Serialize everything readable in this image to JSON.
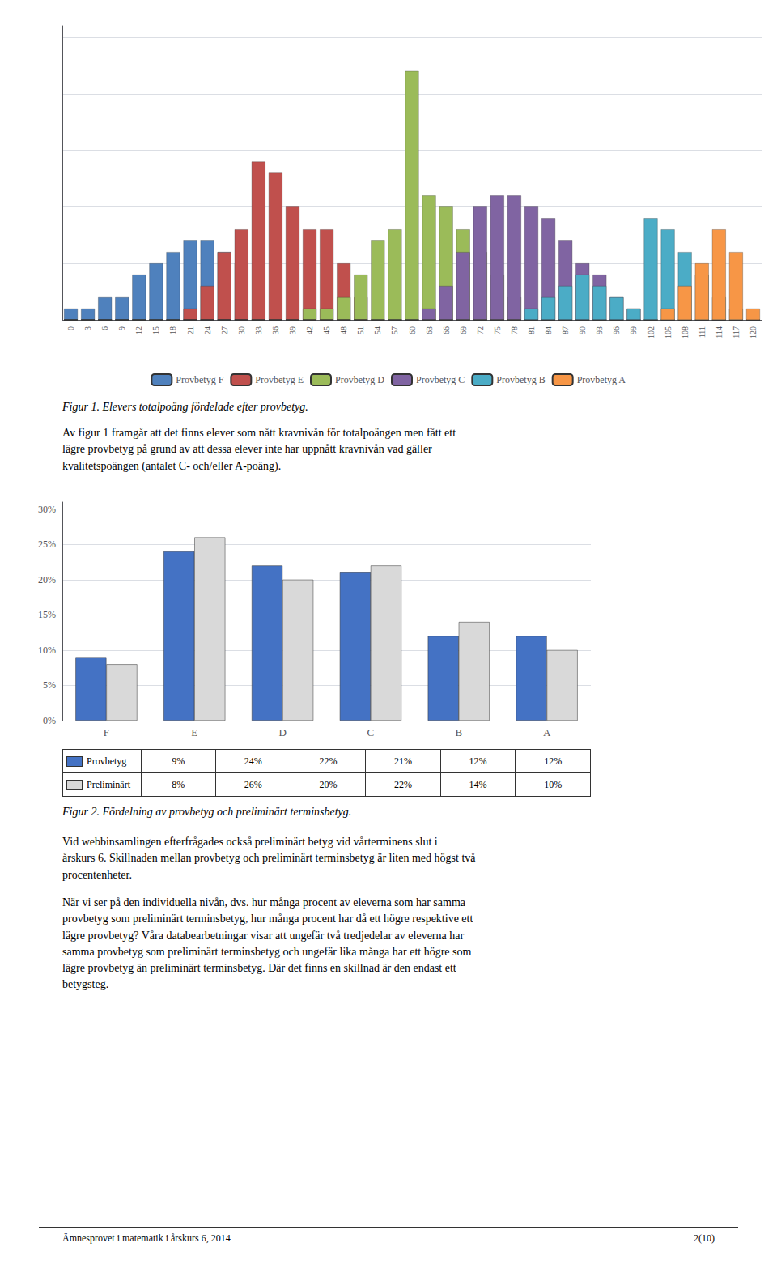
{
  "chart_data": [
    {
      "type": "bar",
      "title": "Figur 1. Elevers totalpoäng fördelade efter provbetyg.",
      "categories": [
        0,
        3,
        6,
        9,
        12,
        15,
        18,
        21,
        24,
        27,
        30,
        33,
        36,
        39,
        42,
        45,
        48,
        51,
        54,
        57,
        60,
        63,
        66,
        69,
        72,
        75,
        78,
        81,
        84,
        87,
        90,
        93,
        96,
        99,
        102,
        105,
        108,
        111,
        114,
        117,
        120
      ],
      "series": [
        {
          "name": "Provbetyg F",
          "color": "#4F81BD",
          "values": [
            1,
            1,
            2,
            2,
            4,
            5,
            6,
            7,
            7,
            6,
            5,
            0,
            0,
            0,
            0,
            0,
            0,
            0,
            0,
            0,
            0,
            0,
            0,
            0,
            0,
            0,
            0,
            0,
            0,
            0,
            0,
            0,
            0,
            0,
            0,
            0,
            0,
            0,
            0,
            0,
            0
          ]
        },
        {
          "name": "Provbetyg E",
          "color": "#C0504D",
          "values": [
            0,
            0,
            0,
            0,
            0,
            0,
            0,
            1,
            3,
            6,
            8,
            14,
            13,
            10,
            8,
            8,
            5,
            2,
            0,
            0,
            0,
            0,
            0,
            0,
            0,
            0,
            0,
            0,
            0,
            0,
            0,
            0,
            0,
            0,
            0,
            0,
            0,
            0,
            0,
            0,
            0
          ]
        },
        {
          "name": "Provbetyg D",
          "color": "#9BBB59",
          "values": [
            0,
            0,
            0,
            0,
            0,
            0,
            0,
            0,
            0,
            0,
            0,
            0,
            0,
            0,
            1,
            1,
            2,
            4,
            7,
            8,
            22,
            11,
            10,
            8,
            6,
            4,
            2,
            0,
            0,
            0,
            0,
            0,
            0,
            0,
            0,
            0,
            0,
            0,
            0,
            0,
            0
          ]
        },
        {
          "name": "Provbetyg C",
          "color": "#8064A2",
          "values": [
            0,
            0,
            0,
            0,
            0,
            0,
            0,
            0,
            0,
            0,
            0,
            0,
            0,
            0,
            0,
            0,
            0,
            0,
            0,
            0,
            0,
            1,
            3,
            6,
            10,
            11,
            11,
            10,
            9,
            7,
            5,
            4,
            2,
            1,
            0,
            0,
            0,
            0,
            0,
            0,
            0
          ]
        },
        {
          "name": "Provbetyg B",
          "color": "#4BACC6",
          "values": [
            0,
            0,
            0,
            0,
            0,
            0,
            0,
            0,
            0,
            0,
            0,
            0,
            0,
            0,
            0,
            0,
            0,
            0,
            0,
            0,
            0,
            0,
            0,
            0,
            0,
            0,
            0,
            1,
            2,
            3,
            4,
            3,
            2,
            1,
            9,
            8,
            6,
            4,
            2,
            1,
            0
          ]
        },
        {
          "name": "Provbetyg A",
          "color": "#F79646",
          "values": [
            0,
            0,
            0,
            0,
            0,
            0,
            0,
            0,
            0,
            0,
            0,
            0,
            0,
            0,
            0,
            0,
            0,
            0,
            0,
            0,
            0,
            0,
            0,
            0,
            0,
            0,
            0,
            0,
            0,
            0,
            0,
            0,
            0,
            0,
            0,
            1,
            3,
            5,
            8,
            6,
            1
          ]
        }
      ],
      "ylim": [
        0,
        26
      ],
      "yticks": [
        0,
        5,
        10,
        15,
        20,
        25
      ],
      "grid": true,
      "legend": "bottom",
      "tick_labels": "x",
      "annotations": [
        "Av figur 1 framgår att det finns elever som nått kravnivån för totalpoängen men fått ett\nlägre provbetyg på grund av att dessa elever inte har uppnått kravnivån vad gäller\nkvalitetspoängen (antalet C- och/eller A-poäng)."
      ]
    },
    {
      "type": "bar",
      "title": "Figur 2. Fördelning av provbetyg och preliminärt terminsbetyg.",
      "categories": [
        "F",
        "E",
        "D",
        "C",
        "B",
        "A"
      ],
      "series": [
        {
          "name": "Provbetyg",
          "color": "#4472C4",
          "values": [
            9,
            24,
            22,
            21,
            12,
            12
          ],
          "value_labels": [
            "9%",
            "24%",
            "22%",
            "21%",
            "12%",
            "12%"
          ]
        },
        {
          "name": "Preliminärt",
          "color": "#D9D9D9",
          "values": [
            8,
            26,
            20,
            22,
            14,
            10
          ],
          "value_labels": [
            "8%",
            "26%",
            "20%",
            "22%",
            "14%",
            "10%"
          ]
        }
      ],
      "ylim": [
        0,
        31
      ],
      "yticks": [
        {
          "value": 0,
          "label": "0%"
        },
        {
          "value": 5,
          "label": "5%"
        },
        {
          "value": 10,
          "label": "10%"
        },
        {
          "value": 15,
          "label": "15%"
        },
        {
          "value": 20,
          "label": "20%"
        },
        {
          "value": 25,
          "label": "25%"
        },
        {
          "value": 30,
          "label": "30%"
        }
      ],
      "grid": true,
      "annotations": [
        "Vid webbinsamlingen efterfrågades också preliminärt betyg vid vårterminens slut i\nårskurs 6. Skillnaden mellan provbetyg och preliminärt terminsbetyg är liten med högst två\nprocentenheter.",
        "När vi ser på den individuella nivån, dvs. hur många procent av eleverna som har samma\nprovbetyg som preliminärt terminsbetyg, hur många procent har då ett högre respektive ett\nlägre provbetyg? Våra databearbetningar visar att ungefär två tredjedelar av eleverna har\nsamma provbetyg som preliminärt terminsbetyg och ungefär lika många har ett högre som\nlägre provbetyg än preliminärt terminsbetyg. Där det finns en skillnad är den endast ett\nbetygsteg.",
        "Ämnesprovet i matematik i årskurs 6, 2014",
        "2(10)"
      ]
    }
  ]
}
